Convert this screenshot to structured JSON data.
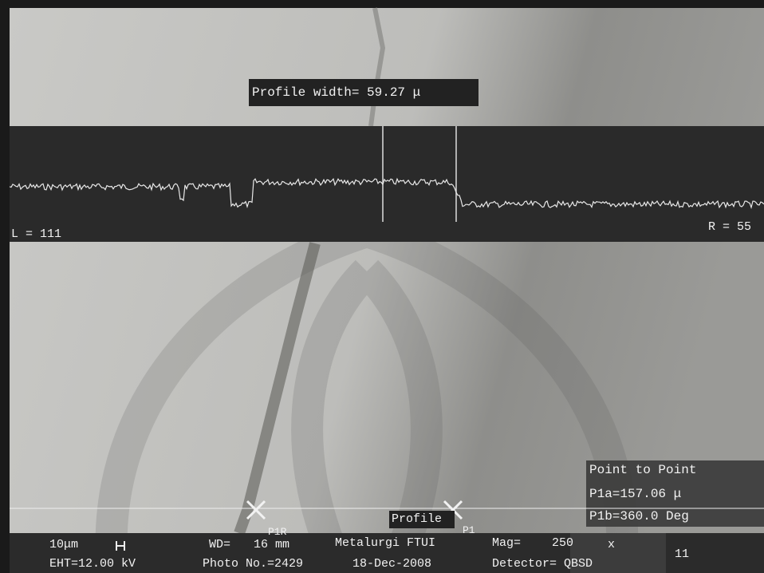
{
  "overlay": {
    "profile_width": "Profile width= 59.27 μ",
    "left_level": "L = 111",
    "right_level": "R = 55",
    "measure_title": "Point to Point",
    "p1a": "P1a=157.06 μ",
    "p1b": "P1b=360.0 Deg",
    "marker_left": "P1R",
    "marker_profile": "Profile",
    "marker_right": "P1"
  },
  "status_bar": {
    "scale": "10μm",
    "wd_label": "WD=",
    "wd_value": "16 mm",
    "operator": "Metalurgi FTUI",
    "mag_label": "Mag=",
    "mag_value": "250",
    "mag_unit": "x",
    "eht": "EHT=12.00 kV",
    "photo": "Photo No.=2429",
    "date": "18-Dec-2008",
    "detector": "Detector= QBSD",
    "frame": "11"
  }
}
